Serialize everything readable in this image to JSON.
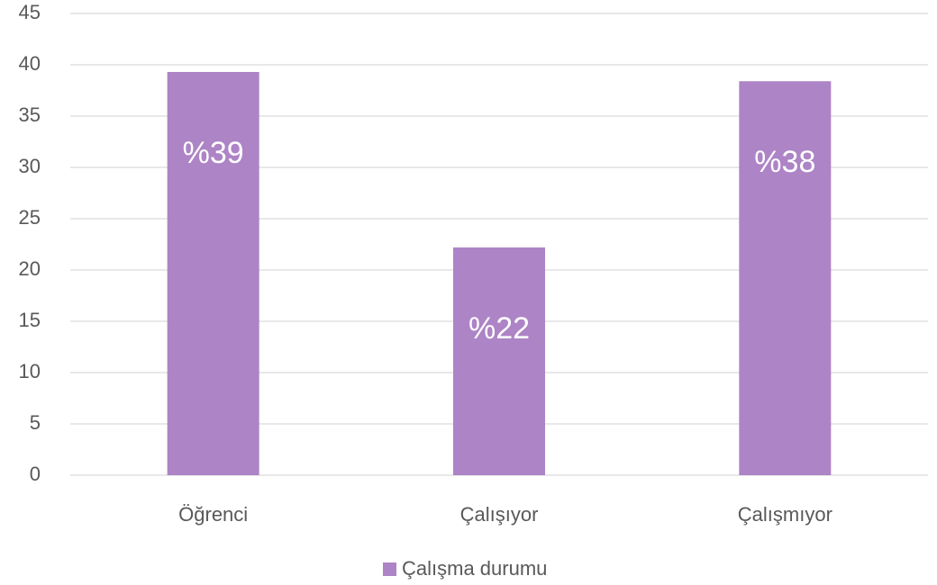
{
  "chart_data": {
    "type": "bar",
    "categories": [
      "Öğrenci",
      "Çalışıyor",
      "Çalışmıyor"
    ],
    "series": [
      {
        "name": "Çalışma durumu",
        "color": "#ad84c6",
        "values": [
          39.3,
          22.2,
          38.4
        ],
        "value_labels": [
          "%39",
          "%22",
          "%38"
        ]
      }
    ],
    "ylim": [
      0,
      45
    ],
    "yticks": [
      0,
      5,
      10,
      15,
      20,
      25,
      30,
      35,
      40,
      45
    ],
    "grid": true,
    "legend": "bottom"
  }
}
